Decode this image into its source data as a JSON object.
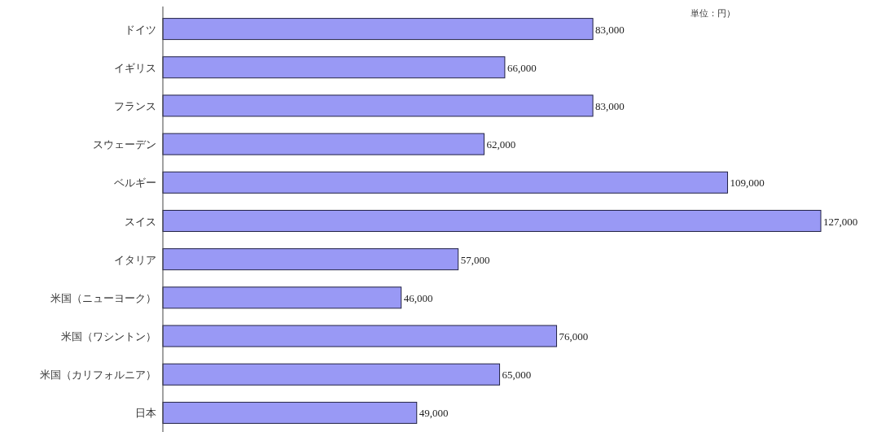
{
  "chart_data": {
    "type": "bar",
    "orientation": "horizontal",
    "categories": [
      "ドイツ",
      "イギリス",
      "フランス",
      "スウェーデン",
      "ベルギー",
      "スイス",
      "イタリア",
      "米国（ニューヨーク）",
      "米国（ワシントン）",
      "米国（カリフォルニア）",
      "日本"
    ],
    "values": [
      83000,
      66000,
      83000,
      62000,
      109000,
      127000,
      57000,
      46000,
      76000,
      65000,
      49000
    ],
    "value_labels": [
      "83,000",
      "66,000",
      "83,000",
      "62,000",
      "109,000",
      "127,000",
      "57,000",
      "46,000",
      "76,000",
      "65,000",
      "49,000"
    ],
    "color": "#9999f5",
    "annotations": [
      "単位：円）"
    ]
  }
}
